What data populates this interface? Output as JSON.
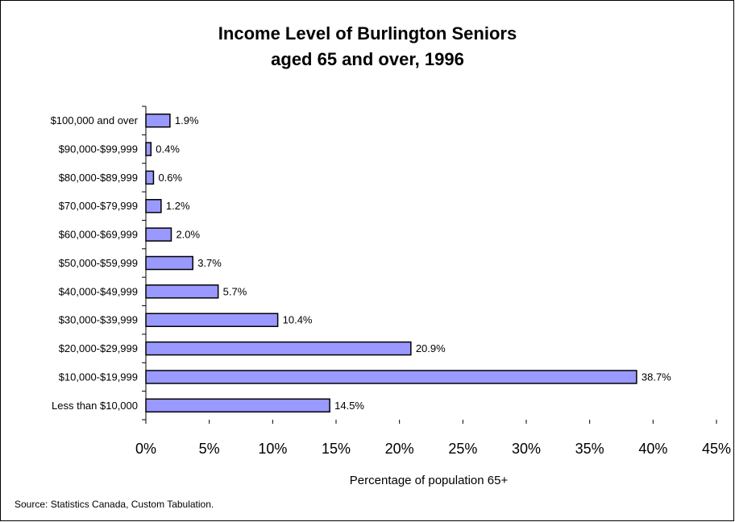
{
  "chart_data": {
    "type": "barh",
    "title": [
      "Income Level of Burlington Seniors",
      "aged 65 and over, 1996"
    ],
    "categories": [
      "Less than $10,000",
      "$10,000-$19,999",
      "$20,000-$29,999",
      "$30,000-$39,999",
      "$40,000-$49,999",
      "$50,000-$59,999",
      "$60,000-$69,999",
      "$70,000-$79,999",
      "$80,000-$89,999",
      "$90,000-$99,999",
      "$100,000 and over"
    ],
    "values": [
      14.5,
      38.7,
      20.9,
      10.4,
      5.7,
      3.7,
      2.0,
      1.2,
      0.6,
      0.4,
      1.9
    ],
    "value_labels": [
      "14.5%",
      "38.7%",
      "20.9%",
      "10.4%",
      "5.7%",
      "3.7%",
      "2.0%",
      "1.2%",
      "0.6%",
      "0.4%",
      "1.9%"
    ],
    "color": "#9999ff",
    "xlim": [
      0,
      45
    ],
    "xticks": [
      {
        "value": 0,
        "label": "0%"
      },
      {
        "value": 5,
        "label": "5%"
      },
      {
        "value": 10,
        "label": "10%"
      },
      {
        "value": 15,
        "label": "15%"
      },
      {
        "value": 20,
        "label": "20%"
      },
      {
        "value": 25,
        "label": "25%"
      },
      {
        "value": 30,
        "label": "30%"
      },
      {
        "value": 35,
        "label": "35%"
      },
      {
        "value": 40,
        "label": "40%"
      },
      {
        "value": 45,
        "label": "45%"
      }
    ],
    "xlabel": "Percentage of population 65+",
    "source": "Source: Statistics Canada, Custom Tabulation.",
    "grid": false
  }
}
